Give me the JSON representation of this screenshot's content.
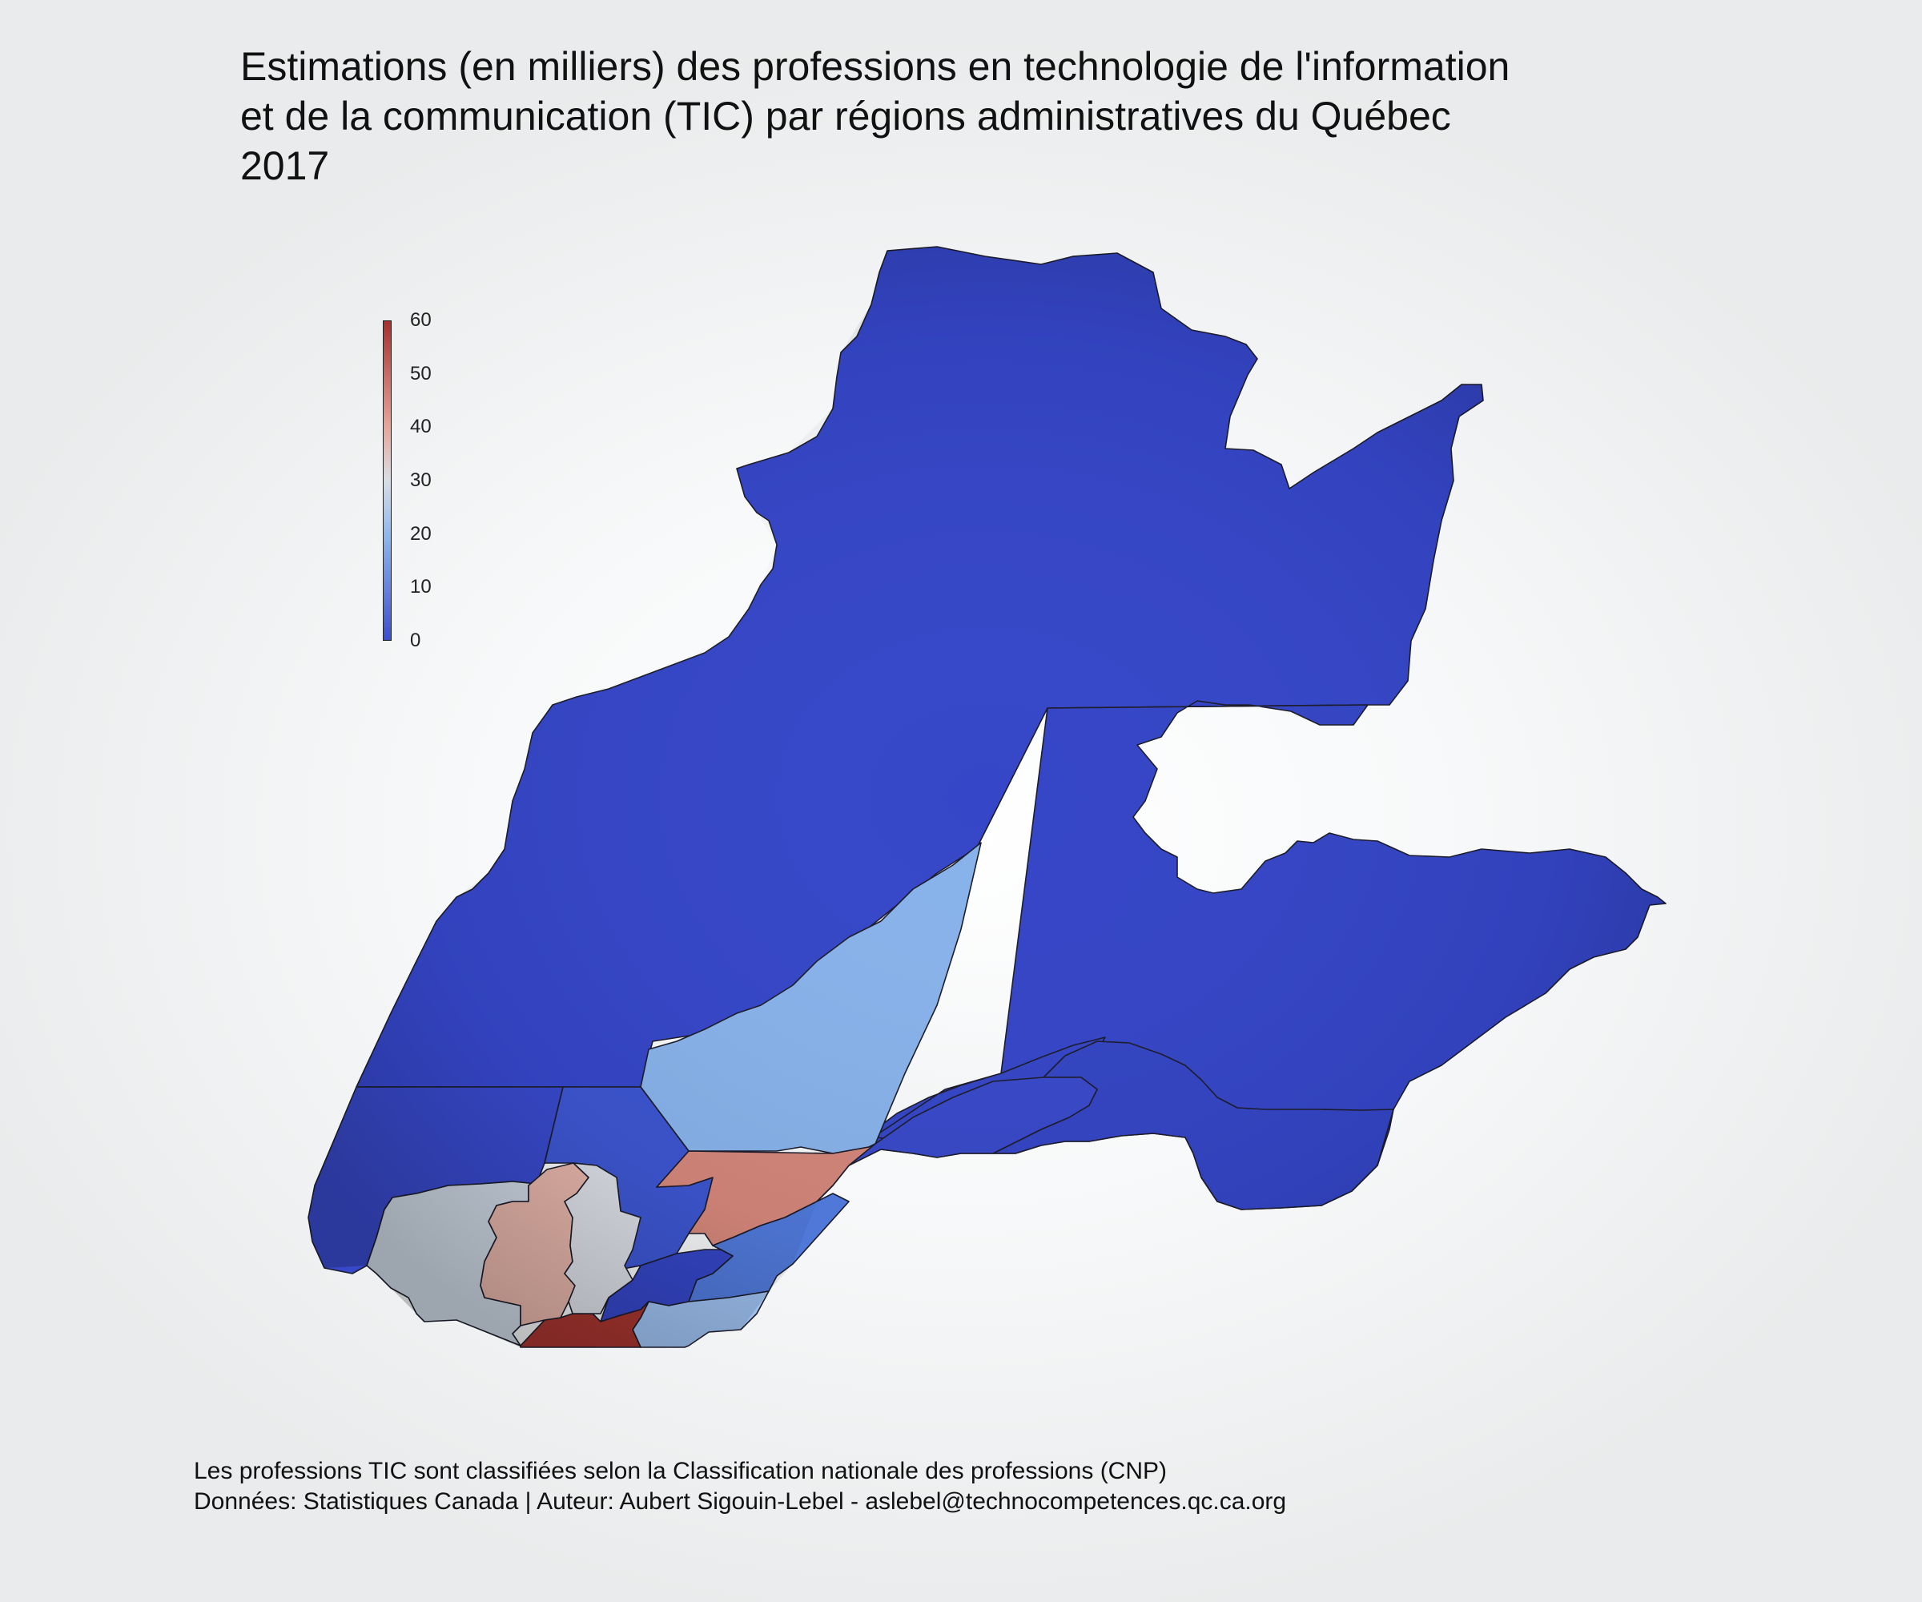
{
  "title": {
    "line1": "Estimations (en milliers) des professions en technologie de l'information",
    "line2": "et de la communication (TIC) par régions administratives du Québec",
    "line3": "2017"
  },
  "legend": {
    "min": 0,
    "max": 60,
    "ticks": [
      "0",
      "10",
      "20",
      "30",
      "40",
      "50",
      "60"
    ],
    "colors": {
      "low": "#3b4fd0",
      "mid_low": "#8fb8ee",
      "mid": "#d9dee6",
      "mid_high": "#e8a597",
      "high": "#a8302c"
    }
  },
  "map_data": {
    "type": "choropleth",
    "value_units": "milliers",
    "regions": [
      {
        "key": "nord_du_quebec",
        "value": 1,
        "color": "#3546c8"
      },
      {
        "key": "cote_nord",
        "value": 1,
        "color": "#3445c6"
      },
      {
        "key": "gaspesie_iles",
        "value": 1,
        "color": "#3344c3"
      },
      {
        "key": "bas_saint_laurent",
        "value": 2,
        "color": "#3848c8"
      },
      {
        "key": "saguenay_lac_saint_jean",
        "value": 18,
        "color": "#87b2ea"
      },
      {
        "key": "abitibi_temiscamingue",
        "value": 2,
        "color": "#3748c8"
      },
      {
        "key": "mauricie",
        "value": 4,
        "color": "#3c55cf"
      },
      {
        "key": "capitale_nationale",
        "value": 43,
        "color": "#d4867a"
      },
      {
        "key": "chaudiere_appalaches",
        "value": 9,
        "color": "#4f78d8"
      },
      {
        "key": "centre_du_quebec",
        "value": 2,
        "color": "#3445c4"
      },
      {
        "key": "estrie",
        "value": 20,
        "color": "#9cbfee"
      },
      {
        "key": "monteregie",
        "value": 60,
        "color": "#a5342f"
      },
      {
        "key": "outaouais",
        "value": 29,
        "color": "#c9d3df"
      },
      {
        "key": "laurentides",
        "value": 37,
        "color": "#e2b2a7"
      },
      {
        "key": "lanaudiere",
        "value": 30,
        "color": "#d9dce3"
      }
    ]
  },
  "caption": {
    "line1": "Les professions TIC sont classifiées selon la Classification nationale des professions (CNP)",
    "line2": "Données: Statistiques Canada | Auteur: Aubert Sigouin-Lebel - aslebel@technocompetences.qc.ca.org"
  }
}
